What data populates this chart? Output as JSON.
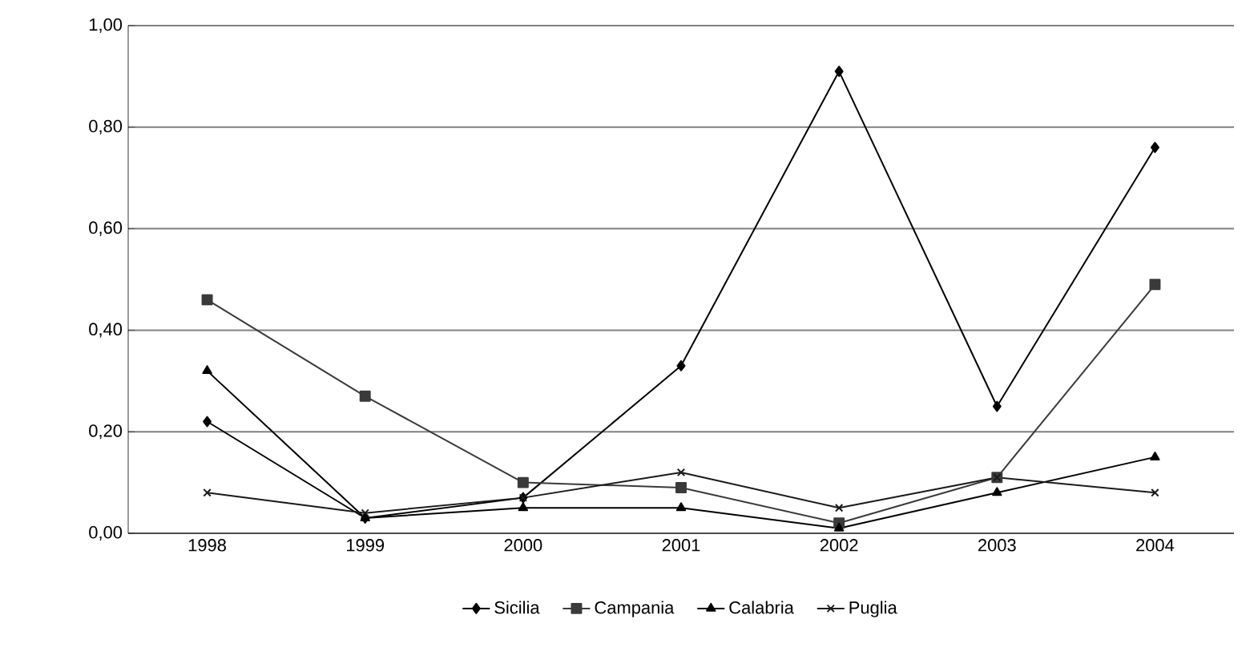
{
  "chart_data": {
    "type": "line",
    "categories": [
      "1998",
      "1999",
      "2000",
      "2001",
      "2002",
      "2003",
      "2004"
    ],
    "series": [
      {
        "name": "Sicilia",
        "color": "#000000",
        "marker": "diamond",
        "values": [
          0.22,
          0.03,
          0.07,
          0.33,
          0.91,
          0.25,
          0.76
        ]
      },
      {
        "name": "Campania",
        "color": "#3a3a3a",
        "marker": "square",
        "values": [
          0.46,
          0.27,
          0.1,
          0.09,
          0.02,
          0.11,
          0.49
        ]
      },
      {
        "name": "Calabria",
        "color": "#000000",
        "marker": "triangle",
        "values": [
          0.32,
          0.03,
          0.05,
          0.05,
          0.01,
          0.08,
          0.15
        ]
      },
      {
        "name": "Puglia",
        "color": "#1a1a1a",
        "marker": "cross",
        "values": [
          0.08,
          0.04,
          0.07,
          0.12,
          0.05,
          0.11,
          0.08
        ]
      }
    ],
    "ylim": [
      0,
      1
    ],
    "yticks": [
      {
        "value": 0,
        "label": "0,00"
      },
      {
        "value": 0.2,
        "label": "0,20"
      },
      {
        "value": 0.4,
        "label": "0,40"
      },
      {
        "value": 0.6,
        "label": "0,60"
      },
      {
        "value": 0.8,
        "label": "0,80"
      },
      {
        "value": 1,
        "label": "1,00"
      }
    ],
    "grid": "y",
    "legend": "bottom",
    "line_style": "solid"
  }
}
